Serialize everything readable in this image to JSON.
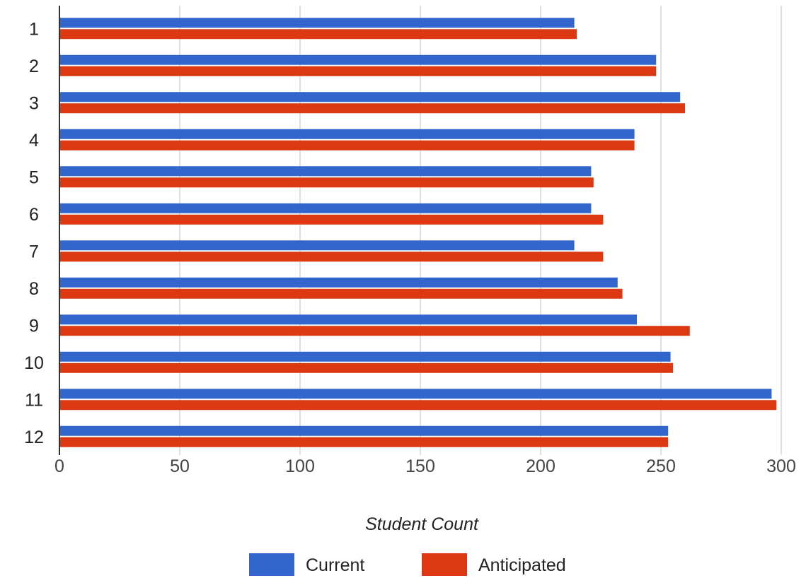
{
  "chart_data": {
    "type": "bar",
    "orientation": "horizontal",
    "title": "",
    "xlabel": "Student Count",
    "ylabel": "",
    "xlim": [
      0,
      300
    ],
    "x_ticks": [
      0,
      50,
      100,
      150,
      200,
      250,
      300
    ],
    "categories": [
      "1",
      "2",
      "3",
      "4",
      "5",
      "6",
      "7",
      "8",
      "9",
      "10",
      "11",
      "12"
    ],
    "series": [
      {
        "name": "Current",
        "color": "#3366cc",
        "values": [
          214,
          248,
          258,
          239,
          221,
          221,
          214,
          232,
          240,
          254,
          296,
          253
        ]
      },
      {
        "name": "Anticipated",
        "color": "#dc3912",
        "values": [
          215,
          248,
          260,
          239,
          222,
          226,
          226,
          234,
          262,
          255,
          298,
          253
        ]
      }
    ],
    "grid": true,
    "legend_position": "bottom"
  }
}
